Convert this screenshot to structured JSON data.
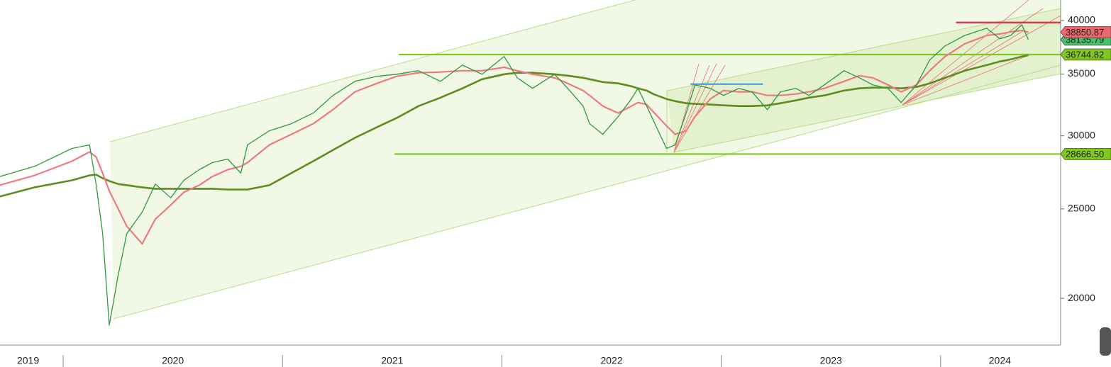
{
  "chart_data": {
    "type": "line",
    "log_scale": true,
    "xlim": [
      2019.712,
      2024.547
    ],
    "ylim": [
      17800,
      42100
    ],
    "yticks": [
      20000,
      25000,
      30000,
      35000,
      40000
    ],
    "xticks": [
      {
        "value": 2019.84,
        "label": "2019"
      },
      {
        "value": 2020.5,
        "label": "2020"
      },
      {
        "value": 2021.5,
        "label": "2021"
      },
      {
        "value": 2022.5,
        "label": "2022"
      },
      {
        "value": 2023.5,
        "label": "2023"
      },
      {
        "value": 2024.27,
        "label": "2024"
      }
    ],
    "year_separators": [
      2020,
      2021,
      2022,
      2023,
      2024
    ],
    "x": [
      2019.71,
      2019.87,
      2020.04,
      2020.12,
      2020.15,
      2020.18,
      2020.21,
      2020.25,
      2020.29,
      2020.36,
      2020.42,
      2020.49,
      2020.55,
      2020.62,
      2020.68,
      2020.75,
      2020.81,
      2020.84,
      2020.94,
      2021.04,
      2021.14,
      2021.23,
      2021.33,
      2021.43,
      2021.52,
      2021.62,
      2021.72,
      2021.82,
      2021.91,
      2022.01,
      2022.07,
      2022.14,
      2022.24,
      2022.3,
      2022.37,
      2022.4,
      2022.46,
      2022.53,
      2022.59,
      2022.62,
      2022.66,
      2022.69,
      2022.75,
      2022.79,
      2022.84,
      2022.88,
      2022.95,
      2023.01,
      2023.08,
      2023.14,
      2023.21,
      2023.27,
      2023.34,
      2023.4,
      2023.47,
      2023.56,
      2023.63,
      2023.69,
      2023.76,
      2023.82,
      2023.89,
      2023.95,
      2024.02,
      2024.11,
      2024.21,
      2024.27,
      2024.32,
      2024.37,
      2024.4
    ],
    "series": [
      {
        "color": "#2f9a3a",
        "width": 1.3,
        "tag": true,
        "tag_color": "#46c06a",
        "values": [
          27100,
          27800,
          29070,
          29330,
          26600,
          23500,
          18700,
          21160,
          23500,
          24800,
          26600,
          25700,
          26850,
          27570,
          28060,
          28310,
          27330,
          29330,
          30380,
          30920,
          31750,
          33180,
          34370,
          34800,
          34980,
          35290,
          34370,
          35790,
          34980,
          36560,
          34670,
          33770,
          34980,
          33770,
          32310,
          30920,
          30110,
          31470,
          32890,
          33770,
          32310,
          31190,
          29070,
          29330,
          31750,
          34070,
          33770,
          33180,
          33770,
          33480,
          32030,
          33480,
          33770,
          33180,
          34070,
          35290,
          34670,
          34070,
          33770,
          32600,
          34070,
          36240,
          37540,
          38540,
          39230,
          38210,
          38540,
          39580,
          38135.79
        ]
      },
      {
        "color": "#ec7a80",
        "width": 2.2,
        "tag": true,
        "tag_color": "#e86870",
        "values": [
          26520,
          27180,
          28160,
          28820,
          28460,
          27330,
          26150,
          25020,
          23940,
          22910,
          24370,
          25240,
          26060,
          26520,
          27100,
          27570,
          27800,
          28060,
          29330,
          30110,
          30920,
          32030,
          33480,
          34190,
          34800,
          35110,
          35170,
          35290,
          35290,
          35600,
          35290,
          34980,
          34670,
          34190,
          33590,
          33180,
          32310,
          31750,
          32310,
          32600,
          32430,
          31860,
          30760,
          30110,
          30380,
          31470,
          32890,
          33590,
          33480,
          33480,
          33180,
          33180,
          33300,
          33480,
          33770,
          34370,
          34860,
          34670,
          34070,
          33480,
          34070,
          35290,
          36560,
          37740,
          38540,
          38680,
          38890,
          39020,
          38850.87
        ]
      },
      {
        "color": "#5f8c1c",
        "width": 2.6,
        "tag": false,
        "values": [
          25780,
          26380,
          26850,
          27180,
          27230,
          26990,
          26800,
          26600,
          26520,
          26380,
          26290,
          26290,
          26290,
          26290,
          26290,
          26240,
          26240,
          26240,
          26520,
          27330,
          28160,
          28960,
          29850,
          30650,
          31360,
          32310,
          33000,
          33770,
          34550,
          34980,
          35110,
          35110,
          34980,
          34860,
          34670,
          34550,
          34310,
          34190,
          33950,
          33770,
          33590,
          33300,
          32890,
          32710,
          32540,
          32490,
          32430,
          32370,
          32310,
          32310,
          32370,
          32540,
          32770,
          33000,
          33180,
          33590,
          33770,
          33830,
          33830,
          33770,
          33890,
          34190,
          34670,
          35290,
          35790,
          36110,
          36300,
          36560,
          36690
        ]
      }
    ],
    "levels": [
      {
        "value": 36744.82,
        "start": 2021.53,
        "color": "#80c820",
        "tag": true
      },
      {
        "value": 28666.5,
        "label": "28666.50",
        "start": 2021.51,
        "color": "#80c820",
        "tag": true
      },
      {
        "value": 39800,
        "start": 2024.07,
        "color": "#e0303a",
        "tag": false
      },
      {
        "value": 34130,
        "start": 2022.86,
        "end": 2023.19,
        "color": "#4aa0d8",
        "tag": false
      }
    ]
  }
}
